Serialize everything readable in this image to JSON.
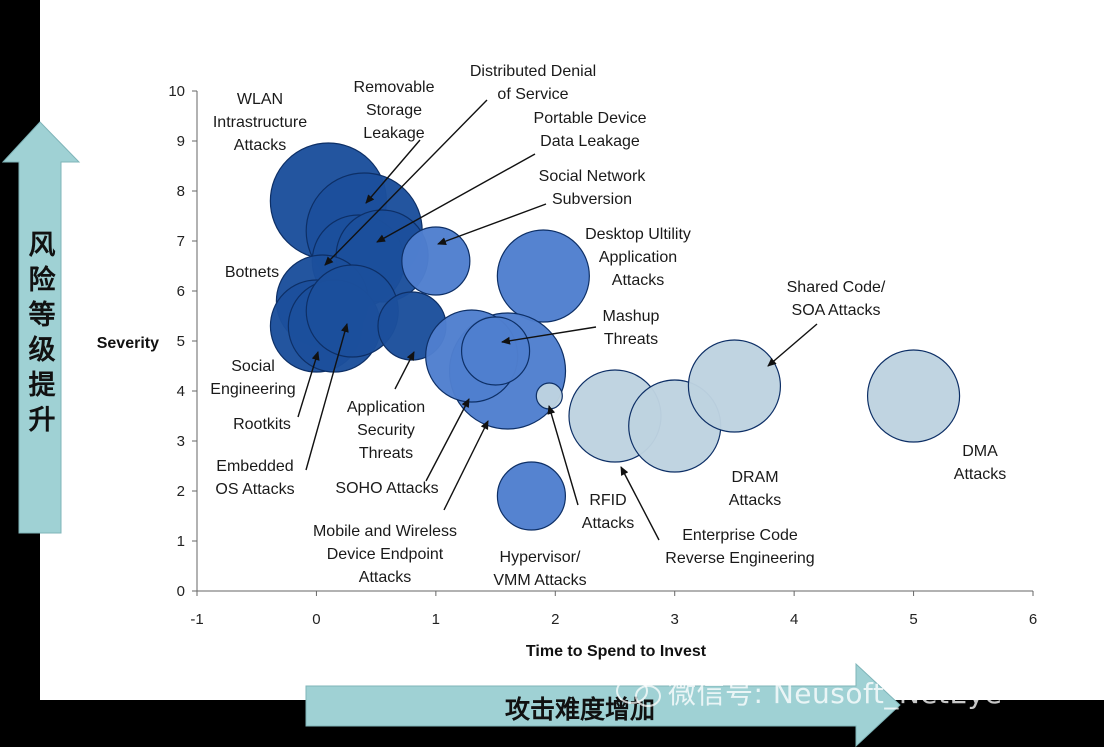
{
  "chart_data": {
    "type": "bubble",
    "xlabel": "Time to Spend to Invest",
    "ylabel": "Severity",
    "xlim": [
      -1,
      6
    ],
    "ylim": [
      0,
      10
    ],
    "xticks": [
      "-1",
      "0",
      "1",
      "2",
      "3",
      "4",
      "5",
      "6"
    ],
    "yticks": [
      "0",
      "1",
      "2",
      "3",
      "4",
      "5",
      "6",
      "7",
      "8",
      "9",
      "10"
    ],
    "grid": false,
    "colors": {
      "dark": "#1c4f9c",
      "medium": "#4f7fce",
      "light": "#bed3e0",
      "stroke": "#0d2f66"
    },
    "points": [
      {
        "label": "WLAN Intrastructure Attacks",
        "x": 0.1,
        "y": 7.8,
        "size": "large",
        "shade": "dark"
      },
      {
        "label": "Removable Storage Leakage",
        "x": 0.4,
        "y": 7.2,
        "size": "large",
        "shade": "dark"
      },
      {
        "label": "Distributed Denial of Service",
        "x": 0.35,
        "y": 6.6,
        "size": "medium",
        "shade": "dark"
      },
      {
        "label": "Portable Device Data Leakage",
        "x": 0.55,
        "y": 6.7,
        "size": "medium",
        "shade": "dark"
      },
      {
        "label": "Botnets",
        "x": 0.05,
        "y": 5.8,
        "size": "medium",
        "shade": "dark"
      },
      {
        "label": "Social Engineering",
        "x": 0.0,
        "y": 5.3,
        "size": "medium",
        "shade": "dark"
      },
      {
        "label": "Rootkits",
        "x": 0.15,
        "y": 5.3,
        "size": "medium",
        "shade": "dark"
      },
      {
        "label": "Embedded OS Attacks",
        "x": 0.3,
        "y": 5.6,
        "size": "medium",
        "shade": "dark"
      },
      {
        "label": "Application Security Threats",
        "x": 0.8,
        "y": 5.3,
        "size": "small",
        "shade": "dark"
      },
      {
        "label": "Social Network Subversion",
        "x": 1.0,
        "y": 6.6,
        "size": "small",
        "shade": "medium"
      },
      {
        "label": "Desktop Ultility Application Attacks",
        "x": 1.9,
        "y": 6.3,
        "size": "medium",
        "shade": "medium"
      },
      {
        "label": "Mobile and Wireless Device Endpoint Attacks",
        "x": 1.6,
        "y": 4.4,
        "size": "large",
        "shade": "medium"
      },
      {
        "label": "SOHO Attacks",
        "x": 1.3,
        "y": 4.7,
        "size": "medium",
        "shade": "medium"
      },
      {
        "label": "Mashup Threats",
        "x": 1.5,
        "y": 4.8,
        "size": "small",
        "shade": "medium"
      },
      {
        "label": "Hypervisor/ VMM Attacks",
        "x": 1.8,
        "y": 1.9,
        "size": "small",
        "shade": "medium"
      },
      {
        "label": "RFID Attacks",
        "x": 1.95,
        "y": 3.9,
        "size": "tiny",
        "shade": "light"
      },
      {
        "label": "Enterprise Code Reverse Engineering",
        "x": 2.5,
        "y": 3.5,
        "size": "medium",
        "shade": "light"
      },
      {
        "label": "DRAM Attacks",
        "x": 3.0,
        "y": 3.3,
        "size": "medium",
        "shade": "light"
      },
      {
        "label": "Shared Code/ SOA Attacks",
        "x": 3.5,
        "y": 4.1,
        "size": "medium",
        "shade": "light"
      },
      {
        "label": "DMA Attacks",
        "x": 5.0,
        "y": 3.9,
        "size": "medium",
        "shade": "light"
      }
    ],
    "annotations": [
      {
        "id": "wlan",
        "lines": [
          "WLAN",
          "Intrastructure",
          "Attacks"
        ]
      },
      {
        "id": "removable",
        "lines": [
          "Removable",
          "Storage",
          "Leakage"
        ]
      },
      {
        "id": "ddos",
        "lines": [
          "Distributed Denial",
          "of Service"
        ]
      },
      {
        "id": "portable",
        "lines": [
          "Portable Device",
          "Data Leakage"
        ]
      },
      {
        "id": "social-net",
        "lines": [
          "Social Network",
          "Subversion"
        ]
      },
      {
        "id": "desktop",
        "lines": [
          "Desktop Ultility",
          "Application",
          "Attacks"
        ]
      },
      {
        "id": "botnets",
        "lines": [
          "Botnets"
        ]
      },
      {
        "id": "mashup",
        "lines": [
          "Mashup",
          "Threats"
        ]
      },
      {
        "id": "shared",
        "lines": [
          "Shared Code/",
          "SOA Attacks"
        ]
      },
      {
        "id": "social-eng",
        "lines": [
          "Social",
          "Engineering"
        ]
      },
      {
        "id": "rootkits",
        "lines": [
          "Rootkits"
        ]
      },
      {
        "id": "app-sec",
        "lines": [
          "Application",
          "Security",
          "Threats"
        ]
      },
      {
        "id": "embedded",
        "lines": [
          "Embedded",
          "OS Attacks"
        ]
      },
      {
        "id": "soho",
        "lines": [
          "SOHO Attacks"
        ]
      },
      {
        "id": "mobile",
        "lines": [
          "Mobile and Wireless",
          "Device Endpoint",
          "Attacks"
        ]
      },
      {
        "id": "hypervisor",
        "lines": [
          "Hypervisor/",
          "VMM Attacks"
        ]
      },
      {
        "id": "rfid",
        "lines": [
          "RFID",
          "Attacks"
        ]
      },
      {
        "id": "enterprise",
        "lines": [
          "Enterprise Code",
          "Reverse Engineering"
        ]
      },
      {
        "id": "dram",
        "lines": [
          "DRAM",
          "Attacks"
        ]
      },
      {
        "id": "dma",
        "lines": [
          "DMA",
          "Attacks"
        ]
      }
    ]
  },
  "overlay": {
    "vertical_arrow_text": "风险等级提升",
    "horizontal_arrow_text": "攻击难度增加",
    "arrow_color": "#9fd1d4"
  },
  "watermark": {
    "text": "微信号: Neusoft_NetEye"
  }
}
